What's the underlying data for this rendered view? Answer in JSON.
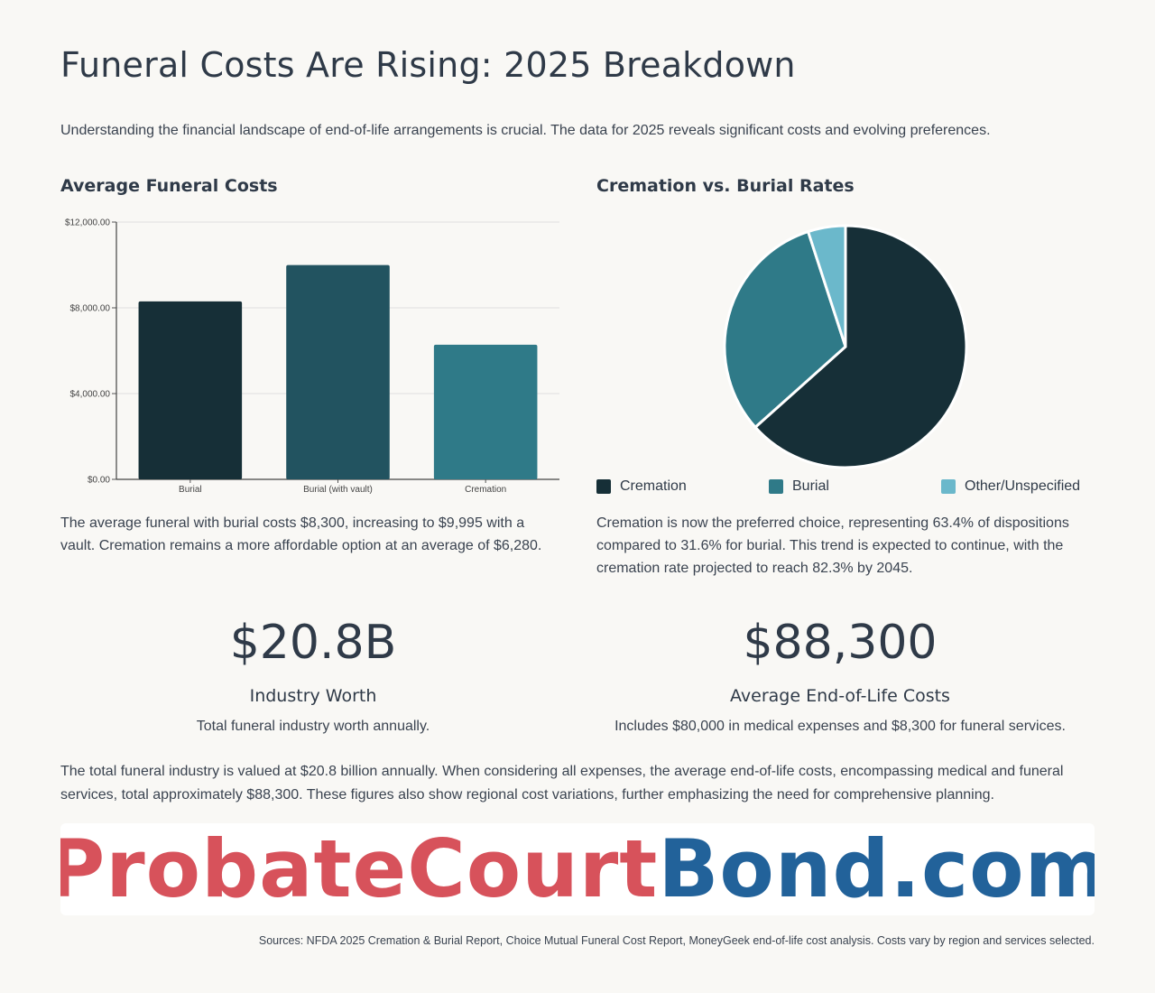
{
  "title": "Funeral Costs Are Rising: 2025 Breakdown",
  "intro": "Understanding the financial landscape of end-of-life arrangements is crucial. The data for 2025 reveals significant costs and evolving preferences.",
  "colors": {
    "dark": "#162f37",
    "mid": "#225360",
    "teal": "#2f7a88",
    "light": "#6bb8cb",
    "logo_red": "#d7525b",
    "logo_blue": "#22629a"
  },
  "bar_section": {
    "title": "Average Funeral Costs",
    "description": "The average funeral with burial costs $8,300, increasing to $9,995 with a vault. Cremation remains a more affordable option at an average of $6,280."
  },
  "pie_section": {
    "title": "Cremation vs. Burial Rates",
    "description": "Cremation is now the preferred choice, representing 63.4% of dispositions compared to 31.6% for burial. This trend is expected to continue, with the cremation rate projected to reach 82.3% by 2045."
  },
  "chart_data": [
    {
      "type": "bar",
      "title": "Average Funeral Costs",
      "categories": [
        "Burial",
        "Burial (with vault)",
        "Cremation"
      ],
      "values": [
        8300,
        9995,
        6280
      ],
      "colors": [
        "#162f37",
        "#225360",
        "#2f7a88"
      ],
      "ylim": [
        0,
        12000
      ],
      "yticks": [
        0,
        4000,
        8000,
        12000
      ],
      "ytick_labels": [
        "$0.00",
        "$4,000.00",
        "$8,000.00",
        "$12,000.00"
      ],
      "grid": true
    },
    {
      "type": "pie",
      "title": "Cremation vs. Burial Rates",
      "labels": [
        "Cremation",
        "Burial",
        "Other/Unspecified"
      ],
      "values": [
        63.4,
        31.6,
        5.0
      ],
      "colors": [
        "#162f37",
        "#2f7a88",
        "#6bb8cb"
      ],
      "legend": "bottom"
    }
  ],
  "stats": [
    {
      "value": "$20.8B",
      "label": "Industry Worth",
      "description": "Total funeral industry worth annually."
    },
    {
      "value": "$88,300",
      "label": "Average End-of-Life Costs",
      "description": "Includes $80,000 in medical expenses and $8,300 for funeral services."
    }
  ],
  "summary": "The total funeral industry is valued at $20.8 billion annually. When considering all expenses, the average end-of-life costs, encompassing medical and funeral services, total approximately $88,300. These figures also show regional cost variations, further emphasizing the need for comprehensive planning.",
  "logo": {
    "part1": "ProbateCourt",
    "part2": "Bond.com"
  },
  "sources": "Sources: NFDA 2025 Cremation & Burial Report, Choice Mutual Funeral Cost Report, MoneyGeek end-of-life cost analysis. Costs vary by region and services selected."
}
